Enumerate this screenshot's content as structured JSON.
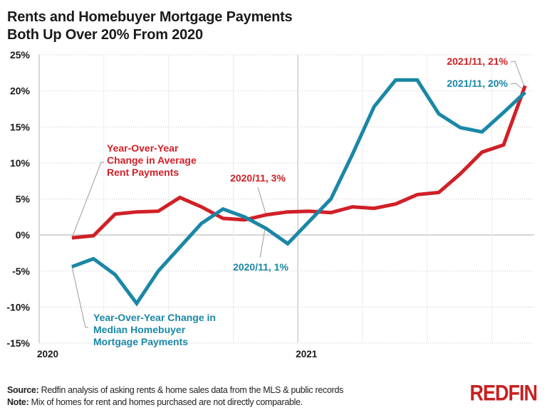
{
  "title_lines": [
    "Rents and Homebuyer Mortgage Payments",
    "Both Up Over 20% From 2020"
  ],
  "footer": {
    "source_label": "Source:",
    "source_text": "Redfin analysis of asking rents & home sales data from the MLS & public records",
    "note_label": "Note:",
    "note_text": "Mix of homes for rent and homes purchased are not directly comparable."
  },
  "logo": "REDFIN",
  "colors": {
    "rent": "#d02027",
    "mortgage": "#1a87a6",
    "grid": "#cccccc",
    "axis_text": "#1a1a1a"
  },
  "annotations": {
    "rent_series_label": [
      "Year-Over-Year",
      "Change in Average",
      "Rent Payments"
    ],
    "mortgage_series_label": [
      "Year-Over-Year Change in",
      "Median Homebuyer",
      "Mortgage Payments"
    ],
    "rent_2020_11": "2020/11, 3%",
    "mortgage_2020_11": "2020/11, 1%",
    "rent_2021_11": "2021/11, 21%",
    "mortgage_2021_11": "2021/11, 20%"
  },
  "chart_data": {
    "type": "line",
    "title": "Rents and Homebuyer Mortgage Payments Both Up Over 20% From 2020",
    "xlabel": "",
    "ylabel": "",
    "x": [
      "2020/02",
      "2020/03",
      "2020/04",
      "2020/05",
      "2020/06",
      "2020/07",
      "2020/08",
      "2020/09",
      "2020/10",
      "2020/11",
      "2020/12",
      "2021/01",
      "2021/02",
      "2021/03",
      "2021/04",
      "2021/05",
      "2021/06",
      "2021/07",
      "2021/08",
      "2021/09",
      "2021/10",
      "2021/11"
    ],
    "x_tick_labels": [
      "2020",
      "2021"
    ],
    "y_tick_labels": [
      "25%",
      "20%",
      "15%",
      "10%",
      "5%",
      "0%",
      "-5%",
      "-10%",
      "-15%"
    ],
    "ylim": [
      -15,
      25
    ],
    "grid": true,
    "legend_position": "inline annotations",
    "series": [
      {
        "name": "Year-Over-Year Change in Average Rent Payments",
        "color": "#d02027",
        "values": [
          -0.4,
          -0.1,
          2.9,
          3.2,
          3.3,
          5.2,
          3.9,
          2.3,
          2.1,
          2.8,
          3.2,
          3.3,
          3.1,
          3.9,
          3.7,
          4.3,
          5.6,
          5.9,
          8.5,
          11.5,
          12.5,
          20.7
        ]
      },
      {
        "name": "Year-Over-Year Change in Median Homebuyer Mortgage Payments",
        "color": "#1a87a6",
        "values": [
          -4.4,
          -3.3,
          -5.5,
          -9.5,
          -5.0,
          -1.7,
          1.6,
          3.6,
          2.5,
          0.9,
          -1.2,
          1.9,
          5.0,
          11.2,
          17.8,
          21.5,
          21.5,
          16.8,
          14.9,
          14.3,
          17.0,
          19.8
        ]
      }
    ],
    "annotations": [
      "2020/11, 3%",
      "2020/11, 1%",
      "2021/11, 21%",
      "2021/11, 20%"
    ]
  }
}
